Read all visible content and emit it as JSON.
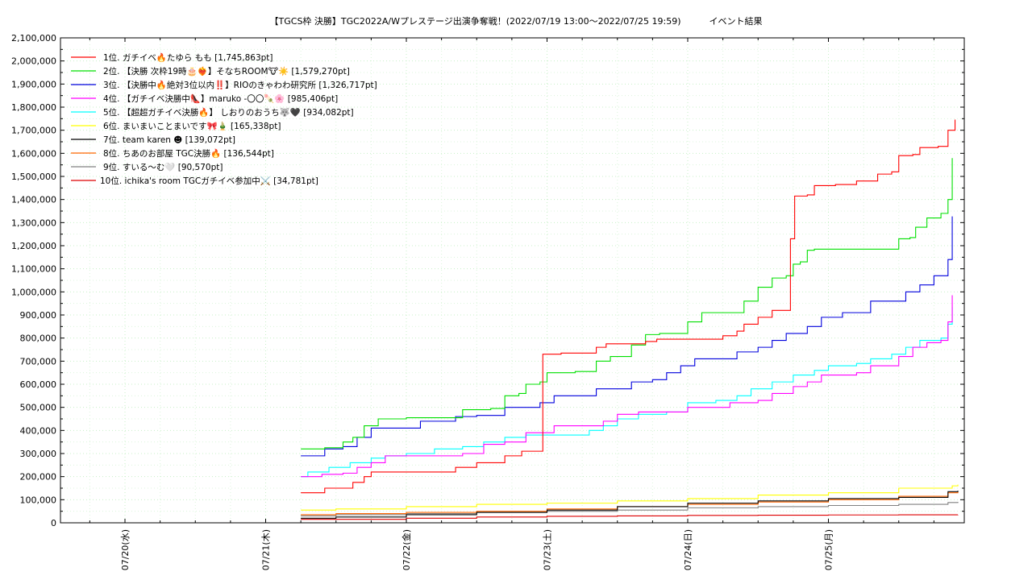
{
  "chart_data": {
    "type": "line",
    "title": "【TGCS枠 決勝】TGC2022A/Wプレステージ出演争奪戦！(2022/07/19 13:00～2022/07/25 19:59)          イベント結果",
    "xlabel": "",
    "ylabel": "",
    "x_ticks": [
      "07/20(水)",
      "07/21(木)",
      "07/22(金)",
      "07/23(土)",
      "07/24(日)",
      "07/25(月)"
    ],
    "y_ticks": [
      "0",
      "100,000",
      "200,000",
      "300,000",
      "400,000",
      "500,000",
      "600,000",
      "700,000",
      "800,000",
      "900,000",
      "1,000,000",
      "1,100,000",
      "1,200,000",
      "1,300,000",
      "1,400,000",
      "1,500,000",
      "1,600,000",
      "1,700,000",
      "1,800,000",
      "1,900,000",
      "2,000,000",
      "2,100,000"
    ],
    "x_unit": "days since 2022/07/19 00:00",
    "xlim": [
      0.64,
      6.92
    ],
    "ylim": [
      0,
      2100000
    ],
    "grid": true,
    "legend_position": "top-left",
    "series": [
      {
        "name": "1位. ガチイベ🔥たゆら もも [1,745,863pt]",
        "color": "#ff0000",
        "points": [
          [
            2.25,
            130000
          ],
          [
            2.4,
            130000
          ],
          [
            2.42,
            150000
          ],
          [
            2.6,
            150000
          ],
          [
            2.62,
            175000
          ],
          [
            2.7,
            200000
          ],
          [
            2.75,
            220000
          ],
          [
            3.0,
            220000
          ],
          [
            3.3,
            220000
          ],
          [
            3.35,
            240000
          ],
          [
            3.5,
            260000
          ],
          [
            3.7,
            290000
          ],
          [
            3.82,
            310000
          ],
          [
            3.95,
            310000
          ],
          [
            3.97,
            730000
          ],
          [
            4.1,
            735000
          ],
          [
            4.33,
            735000
          ],
          [
            4.35,
            760000
          ],
          [
            4.42,
            775000
          ],
          [
            4.6,
            775000
          ],
          [
            4.7,
            785000
          ],
          [
            4.78,
            795000
          ],
          [
            5.0,
            795000
          ],
          [
            5.2,
            795000
          ],
          [
            5.25,
            810000
          ],
          [
            5.35,
            830000
          ],
          [
            5.4,
            860000
          ],
          [
            5.5,
            890000
          ],
          [
            5.6,
            920000
          ],
          [
            5.7,
            920000
          ],
          [
            5.73,
            1230000
          ],
          [
            5.76,
            1415000
          ],
          [
            5.85,
            1420000
          ],
          [
            5.9,
            1460000
          ],
          [
            6.05,
            1465000
          ],
          [
            6.2,
            1480000
          ],
          [
            6.35,
            1510000
          ],
          [
            6.45,
            1520000
          ],
          [
            6.5,
            1590000
          ],
          [
            6.6,
            1595000
          ],
          [
            6.65,
            1625000
          ],
          [
            6.78,
            1630000
          ],
          [
            6.85,
            1700000
          ],
          [
            6.9,
            1745863
          ]
        ]
      },
      {
        "name": "2位. 【決勝 次枠19時🎂❤️‍🔥】そなちROOM🐮☀️ [1,579,270pt]",
        "color": "#00e000",
        "points": [
          [
            2.25,
            320000
          ],
          [
            2.4,
            320000
          ],
          [
            2.42,
            325000
          ],
          [
            2.5,
            325000
          ],
          [
            2.55,
            350000
          ],
          [
            2.62,
            370000
          ],
          [
            2.7,
            420000
          ],
          [
            2.8,
            450000
          ],
          [
            3.0,
            455000
          ],
          [
            3.2,
            455000
          ],
          [
            3.4,
            490000
          ],
          [
            3.6,
            495000
          ],
          [
            3.7,
            550000
          ],
          [
            3.8,
            560000
          ],
          [
            3.85,
            600000
          ],
          [
            3.95,
            610000
          ],
          [
            4.0,
            650000
          ],
          [
            4.2,
            655000
          ],
          [
            4.35,
            700000
          ],
          [
            4.45,
            720000
          ],
          [
            4.6,
            770000
          ],
          [
            4.7,
            815000
          ],
          [
            4.8,
            820000
          ],
          [
            5.0,
            870000
          ],
          [
            5.1,
            910000
          ],
          [
            5.3,
            910000
          ],
          [
            5.4,
            960000
          ],
          [
            5.5,
            1020000
          ],
          [
            5.6,
            1060000
          ],
          [
            5.7,
            1070000
          ],
          [
            5.75,
            1120000
          ],
          [
            5.8,
            1130000
          ],
          [
            5.85,
            1180000
          ],
          [
            5.9,
            1185000
          ],
          [
            6.2,
            1185000
          ],
          [
            6.45,
            1185000
          ],
          [
            6.5,
            1230000
          ],
          [
            6.58,
            1235000
          ],
          [
            6.62,
            1280000
          ],
          [
            6.7,
            1320000
          ],
          [
            6.8,
            1340000
          ],
          [
            6.85,
            1400000
          ],
          [
            6.88,
            1579270
          ]
        ]
      },
      {
        "name": "3位. 【決勝中🔥絶対3位以内‼️】RIOのきゃわわ研究所 [1,326,717pt]",
        "color": "#0000dd",
        "points": [
          [
            2.25,
            290000
          ],
          [
            2.4,
            290000
          ],
          [
            2.42,
            320000
          ],
          [
            2.55,
            330000
          ],
          [
            2.65,
            370000
          ],
          [
            2.75,
            410000
          ],
          [
            2.85,
            410000
          ],
          [
            3.0,
            410000
          ],
          [
            3.1,
            440000
          ],
          [
            3.3,
            440000
          ],
          [
            3.35,
            460000
          ],
          [
            3.5,
            465000
          ],
          [
            3.7,
            500000
          ],
          [
            3.85,
            500000
          ],
          [
            3.95,
            520000
          ],
          [
            4.05,
            550000
          ],
          [
            4.3,
            550000
          ],
          [
            4.35,
            580000
          ],
          [
            4.5,
            580000
          ],
          [
            4.6,
            610000
          ],
          [
            4.75,
            620000
          ],
          [
            4.85,
            650000
          ],
          [
            4.95,
            680000
          ],
          [
            5.05,
            710000
          ],
          [
            5.2,
            710000
          ],
          [
            5.35,
            740000
          ],
          [
            5.5,
            760000
          ],
          [
            5.6,
            790000
          ],
          [
            5.7,
            820000
          ],
          [
            5.85,
            850000
          ],
          [
            5.95,
            890000
          ],
          [
            6.1,
            910000
          ],
          [
            6.25,
            910000
          ],
          [
            6.3,
            960000
          ],
          [
            6.5,
            960000
          ],
          [
            6.55,
            1000000
          ],
          [
            6.65,
            1030000
          ],
          [
            6.75,
            1070000
          ],
          [
            6.85,
            1140000
          ],
          [
            6.88,
            1326717
          ]
        ]
      },
      {
        "name": "4位. 【ガチイベ決勝中👠】maruko -〇〇🍡🌸 [985,406pt]",
        "color": "#ff00ff",
        "points": [
          [
            2.25,
            200000
          ],
          [
            2.4,
            210000
          ],
          [
            2.55,
            215000
          ],
          [
            2.65,
            240000
          ],
          [
            2.75,
            260000
          ],
          [
            2.85,
            290000
          ],
          [
            3.0,
            290000
          ],
          [
            3.4,
            300000
          ],
          [
            3.55,
            340000
          ],
          [
            3.7,
            350000
          ],
          [
            3.85,
            390000
          ],
          [
            4.0,
            390000
          ],
          [
            4.05,
            420000
          ],
          [
            4.3,
            420000
          ],
          [
            4.4,
            440000
          ],
          [
            4.5,
            470000
          ],
          [
            4.65,
            480000
          ],
          [
            4.8,
            480000
          ],
          [
            5.0,
            500000
          ],
          [
            5.3,
            520000
          ],
          [
            5.5,
            530000
          ],
          [
            5.6,
            560000
          ],
          [
            5.75,
            590000
          ],
          [
            5.85,
            610000
          ],
          [
            5.95,
            640000
          ],
          [
            6.2,
            650000
          ],
          [
            6.3,
            680000
          ],
          [
            6.5,
            720000
          ],
          [
            6.6,
            760000
          ],
          [
            6.7,
            780000
          ],
          [
            6.8,
            790000
          ],
          [
            6.85,
            870000
          ],
          [
            6.88,
            985406
          ]
        ]
      },
      {
        "name": "5位. 【超超ガチイベ決勝🔥】 しおりのおうち🐺🖤 [934,082pt]",
        "color": "#00ffff",
        "points": [
          [
            2.25,
            200000
          ],
          [
            2.3,
            220000
          ],
          [
            2.45,
            240000
          ],
          [
            2.6,
            260000
          ],
          [
            2.75,
            280000
          ],
          [
            2.85,
            290000
          ],
          [
            3.0,
            300000
          ],
          [
            3.2,
            320000
          ],
          [
            3.4,
            330000
          ],
          [
            3.55,
            350000
          ],
          [
            3.7,
            370000
          ],
          [
            3.85,
            380000
          ],
          [
            4.2,
            380000
          ],
          [
            4.3,
            400000
          ],
          [
            4.4,
            420000
          ],
          [
            4.5,
            450000
          ],
          [
            4.65,
            470000
          ],
          [
            4.85,
            480000
          ],
          [
            5.0,
            520000
          ],
          [
            5.2,
            530000
          ],
          [
            5.35,
            550000
          ],
          [
            5.45,
            580000
          ],
          [
            5.6,
            610000
          ],
          [
            5.75,
            640000
          ],
          [
            5.9,
            660000
          ],
          [
            6.0,
            680000
          ],
          [
            6.2,
            690000
          ],
          [
            6.3,
            710000
          ],
          [
            6.45,
            730000
          ],
          [
            6.55,
            760000
          ],
          [
            6.65,
            790000
          ],
          [
            6.8,
            800000
          ],
          [
            6.85,
            860000
          ],
          [
            6.88,
            934082
          ]
        ]
      },
      {
        "name": "6位. まいまいことまいです🎀🎍 [165,338pt]",
        "color": "#ffff00",
        "points": [
          [
            2.25,
            55000
          ],
          [
            2.5,
            60000
          ],
          [
            3.0,
            70000
          ],
          [
            3.5,
            80000
          ],
          [
            4.0,
            85000
          ],
          [
            4.5,
            95000
          ],
          [
            5.0,
            105000
          ],
          [
            5.5,
            120000
          ],
          [
            6.0,
            130000
          ],
          [
            6.5,
            150000
          ],
          [
            6.88,
            160000
          ],
          [
            6.92,
            165338
          ]
        ]
      },
      {
        "name": "7位. team karen ☻ [139,072pt]",
        "color": "#000000",
        "points": [
          [
            2.25,
            20000
          ],
          [
            2.5,
            25000
          ],
          [
            3.0,
            35000
          ],
          [
            3.5,
            45000
          ],
          [
            4.0,
            55000
          ],
          [
            4.5,
            70000
          ],
          [
            5.0,
            85000
          ],
          [
            5.5,
            95000
          ],
          [
            6.0,
            105000
          ],
          [
            6.5,
            110000
          ],
          [
            6.85,
            135000
          ],
          [
            6.92,
            139072
          ]
        ]
      },
      {
        "name": "8位. ちあのお部屋 TGC決勝🔥 [136,544pt]",
        "color": "#ff6600",
        "points": [
          [
            2.25,
            35000
          ],
          [
            2.5,
            40000
          ],
          [
            3.0,
            45000
          ],
          [
            3.5,
            50000
          ],
          [
            4.0,
            60000
          ],
          [
            4.5,
            70000
          ],
          [
            5.0,
            80000
          ],
          [
            5.5,
            90000
          ],
          [
            6.0,
            100000
          ],
          [
            6.5,
            115000
          ],
          [
            6.85,
            130000
          ],
          [
            6.92,
            136544
          ]
        ]
      },
      {
        "name": "9位. すいる〜む🤍 [90,570pt]",
        "color": "#808080",
        "points": [
          [
            2.25,
            30000
          ],
          [
            2.5,
            35000
          ],
          [
            3.0,
            40000
          ],
          [
            3.5,
            45000
          ],
          [
            4.0,
            50000
          ],
          [
            4.5,
            55000
          ],
          [
            5.0,
            65000
          ],
          [
            5.5,
            70000
          ],
          [
            6.0,
            75000
          ],
          [
            6.5,
            80000
          ],
          [
            6.85,
            88000
          ],
          [
            6.92,
            90570
          ]
        ]
      },
      {
        "name": "10位. ichika's room  TGCガチイベ参加中⚔️ [34,781pt]",
        "color": "#dd0000",
        "points": [
          [
            2.25,
            15000
          ],
          [
            2.5,
            15000
          ],
          [
            3.0,
            20000
          ],
          [
            3.5,
            25000
          ],
          [
            4.0,
            28000
          ],
          [
            4.5,
            30000
          ],
          [
            5.0,
            32000
          ],
          [
            5.5,
            33000
          ],
          [
            6.0,
            34000
          ],
          [
            6.5,
            34500
          ],
          [
            6.92,
            34781
          ]
        ]
      }
    ]
  }
}
